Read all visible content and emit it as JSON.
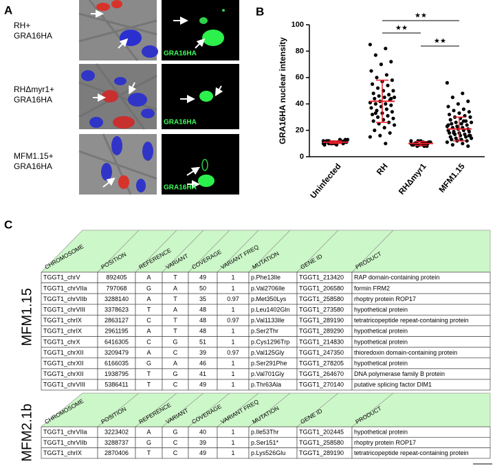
{
  "panel_a": {
    "label": "A",
    "rows": [
      {
        "line1": "RH+",
        "line2": "GRA16HA",
        "channel": "GRA16HA"
      },
      {
        "line1": "RHΔmyr1+",
        "line2": "GRA16HA",
        "channel": "GRA16HA"
      },
      {
        "line1": "MFM1.15+",
        "line2": "GRA16HA",
        "channel": "GRA16HA"
      }
    ]
  },
  "chart_data": {
    "type": "scatter",
    "panel_label": "B",
    "y_label": "GRA16HA nuclear intensity",
    "categories": [
      "Uninfected",
      "RH",
      "RHΔmyr1",
      "MFM1.15"
    ],
    "ylim": [
      0,
      100
    ],
    "yticks": [
      0,
      20,
      40,
      60,
      80,
      100
    ],
    "series": [
      {
        "name": "Uninfected",
        "color": "#000000",
        "values": [
          10,
          11,
          12,
          11,
          10,
          9,
          12,
          11,
          13,
          10,
          11,
          12,
          10,
          11,
          9,
          12,
          11,
          10,
          13,
          11,
          12,
          10,
          11,
          12,
          11,
          10,
          12,
          11,
          9,
          13
        ]
      },
      {
        "name": "RH",
        "color": "#000000",
        "values": [
          85,
          82,
          77,
          72,
          70,
          65,
          62,
          60,
          58,
          57,
          55,
          54,
          52,
          50,
          50,
          48,
          47,
          46,
          45,
          45,
          44,
          43,
          42,
          41,
          40,
          40,
          39,
          38,
          37,
          36,
          35,
          34,
          33,
          32,
          31,
          30,
          29,
          28,
          27,
          26,
          25,
          24,
          22,
          20,
          18,
          16,
          15,
          10,
          33,
          44
        ]
      },
      {
        "name": "RHΔmyr1",
        "color": "#000000",
        "values": [
          12,
          11,
          10,
          10,
          9,
          9,
          8,
          10,
          11,
          12,
          9,
          10,
          8,
          11,
          10,
          9,
          10,
          12,
          11,
          9,
          10,
          8,
          9,
          10
        ]
      },
      {
        "name": "MFM1.15",
        "color": "#000000",
        "values": [
          56,
          48,
          45,
          42,
          40,
          38,
          36,
          35,
          34,
          33,
          32,
          31,
          30,
          30,
          29,
          28,
          27,
          26,
          26,
          25,
          25,
          24,
          23,
          23,
          22,
          22,
          21,
          21,
          20,
          20,
          19,
          19,
          18,
          18,
          17,
          17,
          16,
          16,
          15,
          15,
          14,
          14,
          13,
          13,
          12,
          12,
          11,
          10,
          9,
          8,
          21,
          24,
          27,
          18,
          16
        ]
      }
    ],
    "means": [
      11,
      42,
      10,
      21
    ],
    "errors": [
      1,
      16,
      1.5,
      9
    ],
    "error_color": "#e8202a",
    "annotations": [
      "★★",
      "★★",
      "★★"
    ]
  },
  "panel_c": {
    "label": "C",
    "columns": [
      "CHROMOSOME",
      "POSITION",
      "REFERENCE",
      "VARIANT",
      "COVERAGE",
      "VARIANT FREQ",
      "MUTATION",
      "GENE ID",
      "PRODUCT"
    ],
    "tables": [
      {
        "group": "MFM1.15",
        "rows": [
          [
            "TGGT1_chrV",
            "892405",
            "A",
            "T",
            "49",
            "1",
            "p.Phe13Ile",
            "TGGT1_213420",
            "RAP domain-containing protein"
          ],
          [
            "TGGT1_chrVIIa",
            "797068",
            "G",
            "A",
            "50",
            "1",
            "p.Val2706Ile",
            "TGGT1_206580",
            "formin FRM2"
          ],
          [
            "TGGT1_chrVIIb",
            "3288140",
            "A",
            "T",
            "35",
            "0.97",
            "p.Met350Lys",
            "TGGT1_258580",
            "rhoptry protein ROP17"
          ],
          [
            "TGGT1_chrVIII",
            "3378623",
            "T",
            "A",
            "48",
            "1",
            "p.Leu1402Gln",
            "TGGT1_273580",
            "hypothetical protein"
          ],
          [
            "TGGT1_chrIX",
            "2863127",
            "C",
            "T",
            "48",
            "0.97",
            "p.Val1133Ile",
            "TGGT1_289190",
            "tetratricopeptide repeat-containing protein"
          ],
          [
            "TGGT1_chrIX",
            "2961195",
            "A",
            "T",
            "48",
            "1",
            "p.Ser2Thr",
            "TGGT1_289290",
            "hypothetical protein"
          ],
          [
            "TGGT1_chrX",
            "6416305",
            "C",
            "G",
            "51",
            "1",
            "p.Cys1296Trp",
            "TGGT1_214830",
            "hypothetical protein"
          ],
          [
            "TGGT1_chrXII",
            "3209479",
            "A",
            "C",
            "39",
            "0.97",
            "p.Val125Gly",
            "TGGT1_247350",
            "thioredoxin domain-containing protein"
          ],
          [
            "TGGT1_chrXII",
            "6166035",
            "G",
            "A",
            "46",
            "1",
            "p.Ser291Phe",
            "TGGT1_278205",
            "hypothetical protein"
          ],
          [
            "TGGT1_chrXII",
            "1938795",
            "T",
            "G",
            "41",
            "1",
            "p.Val701Gly",
            "TGGT1_264670",
            "DNA polymerase family B protein"
          ],
          [
            "TGGT1_chrVIII",
            "5386411",
            "T",
            "C",
            "49",
            "1",
            "p.Thr63Ala",
            "TGGT1_270140",
            "putative splicing factor DIM1"
          ]
        ]
      },
      {
        "group": "MFM2.1b",
        "rows": [
          [
            "TGGT1_chrVIIa",
            "3223402",
            "A",
            "G",
            "40",
            "1",
            "p.Ile53Thr",
            "TGGT1_202445",
            "hypothetical protein"
          ],
          [
            "TGGT1_chrVIIb",
            "3288737",
            "G",
            "C",
            "39",
            "1",
            "p.Ser151*",
            "TGGT1_258580",
            "rhoptry protein ROP17"
          ],
          [
            "TGGT1_chrIX",
            "2870406",
            "T",
            "C",
            "49",
            "1",
            "p.Lys526Glu",
            "TGGT1_289190",
            "tetratricopeptide repeat-containing protein"
          ]
        ]
      }
    ]
  }
}
